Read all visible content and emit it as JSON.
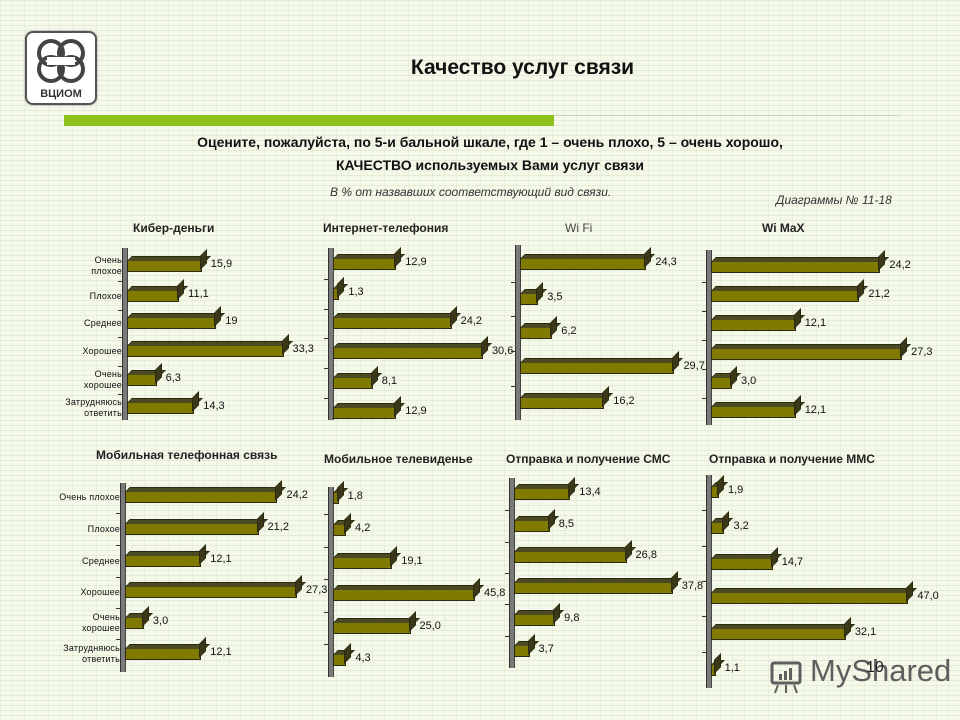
{
  "header": {
    "logo_text": "ВЦИОМ",
    "title": "Качество услуг связи",
    "question_line1": "Оцените, пожалуйста, по 5-и бальной шкале, где 1 – очень плохо, 5 – очень хорошо,",
    "question_line2": "КАЧЕСТВО используемых Вами услуг связи",
    "note": "В % от назвавших соответствующий вид связи.",
    "diagrams": "Диаграммы  № 11-18"
  },
  "categories": [
    "Очень плохое",
    "Плохое",
    "Среднее",
    "Хорошее",
    "Очень хорошее",
    "Затрудняюсь ответить"
  ],
  "category_labels_top": [
    [
      "Очень",
      "плохое"
    ],
    [
      "Плохое"
    ],
    [
      "Среднее"
    ],
    [
      "Хорошее"
    ],
    [
      "Очень",
      "хорошее"
    ],
    [
      "Затрудняюсь",
      "ответить"
    ]
  ],
  "category_labels_bottom": [
    [
      "Очень плохое"
    ],
    [
      "Плохое"
    ],
    [
      "Среднее"
    ],
    [
      "Хорошее"
    ],
    [
      "Очень",
      "хорошее"
    ],
    [
      "Затрудняюсь",
      "ответить"
    ]
  ],
  "colors": {
    "bar": "#807a00",
    "bar_dark": "#3a3818",
    "accent_green": "#8cc21a",
    "background": "#f4f9ea"
  },
  "chart_data": [
    {
      "type": "bar",
      "orientation": "horizontal",
      "title": "Кибер-деньги",
      "categories": [
        "Очень плохое",
        "Плохое",
        "Среднее",
        "Хорошее",
        "Очень хорошее",
        "Затрудняюсь ответить"
      ],
      "values": [
        15.9,
        11.1,
        19,
        33.3,
        6.3,
        14.3
      ],
      "labels": [
        "15,9",
        "11,1",
        "19",
        "33,3",
        "6,3",
        "14,3"
      ],
      "xlabel": "",
      "ylabel": "",
      "unit": "%"
    },
    {
      "type": "bar",
      "orientation": "horizontal",
      "title": "Интернет-телефония",
      "categories": [
        "Очень плохое",
        "Плохое",
        "Среднее",
        "Хорошее",
        "Очень хорошее",
        "Затрудняюсь ответить"
      ],
      "values": [
        12.9,
        1.3,
        24.2,
        30.6,
        8.1,
        12.9
      ],
      "labels": [
        "12,9",
        "1,3",
        "24,2",
        "30,6",
        "8,1",
        "12,9"
      ],
      "unit": "%"
    },
    {
      "type": "bar",
      "orientation": "horizontal",
      "title": "Wi Fi",
      "categories": [
        "Очень плохое",
        "Плохое",
        "Среднее",
        "Хорошее",
        "Очень хорошее"
      ],
      "values": [
        24.3,
        3.5,
        6.2,
        29.7,
        16.2
      ],
      "labels": [
        "24,3",
        "3,5",
        "6,2",
        "29,7",
        "16,2"
      ],
      "unit": "%"
    },
    {
      "type": "bar",
      "orientation": "horizontal",
      "title": "Wi MaX",
      "categories": [
        "Очень плохое",
        "Плохое",
        "Среднее",
        "Хорошее",
        "Очень хорошее",
        "Затрудняюсь ответить"
      ],
      "values": [
        24.2,
        21.2,
        12.1,
        27.3,
        3.0,
        12.1
      ],
      "labels": [
        "24,2",
        "21,2",
        "12,1",
        "27,3",
        "3,0",
        "12,1"
      ],
      "unit": "%"
    },
    {
      "type": "bar",
      "orientation": "horizontal",
      "title": "Мобильная телефонная связь",
      "categories": [
        "Очень плохое",
        "Плохое",
        "Среднее",
        "Хорошее",
        "Очень хорошее",
        "Затрудняюсь ответить"
      ],
      "values": [
        24.2,
        21.2,
        12.1,
        27.3,
        3.0,
        12.1
      ],
      "labels": [
        "24,2",
        "21,2",
        "12,1",
        "27,3",
        "3,0",
        "12,1"
      ],
      "unit": "%"
    },
    {
      "type": "bar",
      "orientation": "horizontal",
      "title": "Мобильное телевиденье",
      "categories": [
        "Очень плохое",
        "Плохое",
        "Среднее",
        "Хорошее",
        "Очень хорошее",
        "Затрудняюсь ответить"
      ],
      "values": [
        1.8,
        4.2,
        19.1,
        45.8,
        25.0,
        4.3
      ],
      "labels": [
        "1,8",
        "4,2",
        "19,1",
        "45,8",
        "25,0",
        "4,3"
      ],
      "unit": "%"
    },
    {
      "type": "bar",
      "orientation": "horizontal",
      "title": "Отправка и получение СМС",
      "categories": [
        "Очень плохое",
        "Плохое",
        "Среднее",
        "Хорошее",
        "Очень хорошее",
        "Затрудняюсь ответить"
      ],
      "values": [
        13.4,
        8.5,
        26.8,
        37.8,
        9.8,
        3.7
      ],
      "labels": [
        "13,4",
        "8,5",
        "26,8",
        "37,8",
        "9,8",
        "3,7"
      ],
      "unit": "%"
    },
    {
      "type": "bar",
      "orientation": "horizontal",
      "title": "Отправка и получение ММС",
      "categories": [
        "Очень плохое",
        "Плохое",
        "Среднее",
        "Хорошее",
        "Очень хорошее",
        "Затрудняюсь ответить"
      ],
      "values": [
        1.9,
        3.2,
        14.7,
        47.0,
        32.1,
        1.1
      ],
      "labels": [
        "1,9",
        "3,2",
        "14,7",
        "47,0",
        "32,1",
        "1,1"
      ],
      "unit": "%"
    }
  ],
  "footer": {
    "page_number": "10",
    "watermark": "MyShared"
  }
}
